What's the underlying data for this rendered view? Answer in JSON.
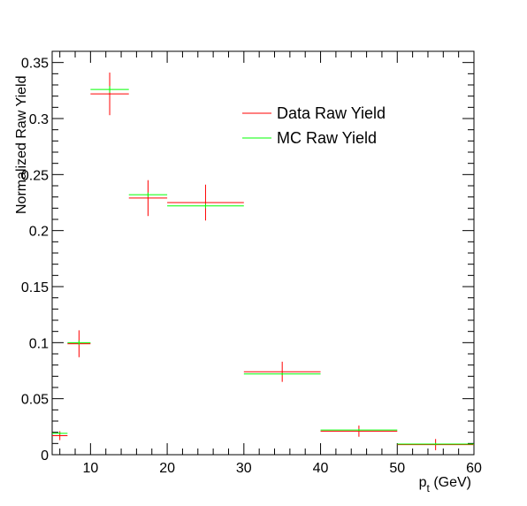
{
  "chart_data": {
    "type": "scatter",
    "title": "",
    "xlabel": "p",
    "xlabel_subscript": "t",
    "xlabel_unit": " (GeV)",
    "ylabel": "Normalized Raw Yield",
    "xlim": [
      5,
      60
    ],
    "ylim": [
      0,
      0.36
    ],
    "xticks": [
      10,
      20,
      30,
      40,
      50,
      60
    ],
    "xtick_labels": [
      "10",
      "20",
      "30",
      "40",
      "50",
      "60"
    ],
    "yticks": [
      0,
      0.05,
      0.1,
      0.15,
      0.2,
      0.25,
      0.3,
      0.35
    ],
    "ytick_labels": [
      "0",
      "0.05",
      "0.1",
      "0.15",
      "0.2",
      "0.25",
      "0.3",
      "0.35"
    ],
    "grid": false,
    "legend_position": "top-right",
    "bins": [
      [
        5,
        7
      ],
      [
        7,
        10
      ],
      [
        10,
        15
      ],
      [
        15,
        20
      ],
      [
        20,
        30
      ],
      [
        30,
        40
      ],
      [
        40,
        50
      ],
      [
        50,
        60
      ]
    ],
    "series": [
      {
        "name": "Data Raw Yield",
        "color": "#ff0000",
        "values": [
          0.017,
          0.099,
          0.322,
          0.229,
          0.225,
          0.074,
          0.021,
          0.009
        ],
        "errors": [
          0.004,
          0.012,
          0.019,
          0.016,
          0.016,
          0.009,
          0.005,
          0.005
        ]
      },
      {
        "name": "MC Raw Yield",
        "color": "#00ff00",
        "values": [
          0.019,
          0.1,
          0.326,
          0.232,
          0.222,
          0.072,
          0.022,
          0.0095
        ],
        "errors": [
          0.001,
          0.002,
          0.003,
          0.002,
          0.002,
          0.001,
          0.001,
          0.001
        ]
      }
    ]
  }
}
